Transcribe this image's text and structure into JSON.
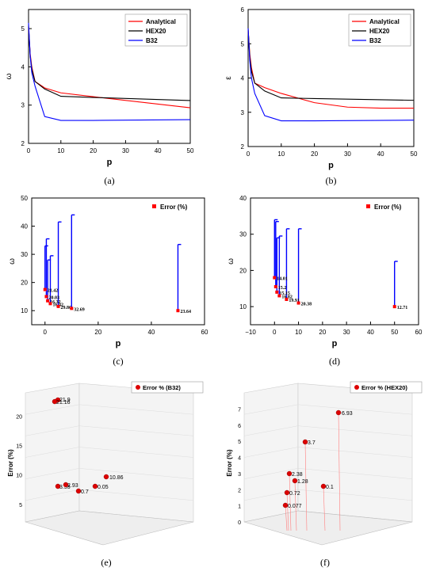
{
  "chart_data": [
    {
      "id": "a",
      "type": "line",
      "caption": "(a)",
      "xlabel": "p",
      "ylabel": "ω",
      "xlim": [
        0,
        50
      ],
      "ylim": [
        2,
        5.5
      ],
      "xticks": [
        "0",
        "10",
        "20",
        "30",
        "40",
        "50"
      ],
      "yticks": [
        "2",
        "3",
        "4",
        "5"
      ],
      "legend": "top-right",
      "series": [
        {
          "name": "Analytical",
          "color": "#ff0000",
          "x": [
            0,
            0.5,
            1,
            2,
            5,
            10,
            20,
            50
          ],
          "y": [
            5.05,
            4.35,
            4.0,
            3.62,
            3.45,
            3.32,
            3.22,
            2.93
          ]
        },
        {
          "name": "HEX20",
          "color": "#000000",
          "x": [
            0,
            0.5,
            1,
            2,
            5,
            10,
            20,
            50
          ],
          "y": [
            5.05,
            4.3,
            3.95,
            3.62,
            3.42,
            3.23,
            3.2,
            3.12
          ]
        },
        {
          "name": "B32",
          "color": "#0000ff",
          "x": [
            0,
            0.5,
            1,
            2,
            5,
            10,
            20,
            50
          ],
          "y": [
            5.15,
            4.3,
            3.85,
            3.5,
            2.7,
            2.6,
            2.6,
            2.62
          ]
        }
      ]
    },
    {
      "id": "b",
      "type": "line",
      "caption": "(b)",
      "xlabel": "p",
      "ylabel": "ε",
      "xlim": [
        0,
        50
      ],
      "ylim": [
        2,
        6
      ],
      "xticks": [
        "0",
        "10",
        "20",
        "30",
        "40",
        "50"
      ],
      "yticks": [
        "2",
        "3",
        "4",
        "5",
        "6"
      ],
      "legend": "top-right",
      "series": [
        {
          "name": "Analytical",
          "color": "#ff0000",
          "x": [
            0,
            0.5,
            1,
            2,
            5,
            10,
            20,
            30,
            40,
            50
          ],
          "y": [
            5.4,
            4.7,
            4.3,
            3.85,
            3.72,
            3.55,
            3.28,
            3.15,
            3.12,
            3.12
          ]
        },
        {
          "name": "HEX20",
          "color": "#000000",
          "x": [
            0,
            0.5,
            1,
            2,
            5,
            10,
            20,
            50
          ],
          "y": [
            5.45,
            4.6,
            4.2,
            3.85,
            3.62,
            3.42,
            3.4,
            3.35
          ]
        },
        {
          "name": "B32",
          "color": "#0000ff",
          "x": [
            0,
            0.5,
            1,
            2,
            5,
            10,
            20,
            50
          ],
          "y": [
            5.45,
            4.5,
            4.0,
            3.55,
            2.9,
            2.75,
            2.75,
            2.77
          ]
        }
      ]
    },
    {
      "id": "c",
      "type": "scatter",
      "caption": "(c)",
      "xlabel": "p",
      "ylabel": "ω",
      "xlim": [
        -5,
        60
      ],
      "ylim": [
        5,
        50
      ],
      "xticks": [
        "0",
        "20",
        "40",
        "60"
      ],
      "yticks": [
        "10",
        "20",
        "30",
        "40",
        "50"
      ],
      "legend": "top-right",
      "series": [
        {
          "name": "Error (%)",
          "color": "#ff0000",
          "x": [
            0,
            0.5,
            1,
            2,
            5,
            10,
            50
          ],
          "y": [
            17.5,
            15.0,
            13.5,
            12.5,
            11.5,
            10.8,
            10.0
          ],
          "labels": [
            "21.42",
            "20.03",
            "16.32",
            "16.42",
            "29.86",
            "32.69",
            "23.64"
          ],
          "bar_top": [
            33,
            35.5,
            28,
            29.5,
            41.5,
            44,
            33.5
          ]
        }
      ]
    },
    {
      "id": "d",
      "type": "scatter",
      "caption": "(d)",
      "xlabel": "p",
      "ylabel": "ω",
      "xlim": [
        -10,
        60
      ],
      "ylim": [
        5,
        40
      ],
      "xticks": [
        "−10",
        "0",
        "10",
        "20",
        "30",
        "40",
        "50",
        "60"
      ],
      "yticks": [
        "10",
        "20",
        "30",
        "40"
      ],
      "legend": "top-right",
      "series": [
        {
          "name": "Error (%)",
          "color": "#ff0000",
          "x": [
            0,
            0.5,
            1,
            2,
            5,
            10,
            50
          ],
          "y": [
            18,
            15.5,
            14,
            13,
            12,
            11,
            10
          ],
          "labels": [
            "14.01",
            "15.2",
            "15.15",
            "16.82",
            "19.91",
            "20.38",
            "12.71"
          ],
          "bar_top": [
            34,
            33.5,
            29,
            29.5,
            31.5,
            31.5,
            22.5
          ]
        }
      ]
    },
    {
      "id": "e",
      "type": "scatter",
      "caption": "(e)",
      "zlabel": "Error (%)",
      "zticks": [
        "5",
        "10",
        "15",
        "20"
      ],
      "legend": "top-right",
      "series": [
        {
          "name": "Error % (B32)",
          "color": "#dd0000",
          "labels": [
            "21.9",
            "21.16",
            "10.86",
            "3.53",
            "2.93",
            "0.7",
            "0.05"
          ]
        }
      ]
    },
    {
      "id": "f",
      "type": "scatter",
      "caption": "(f)",
      "zlabel": "Error (%)",
      "zticks": [
        "0",
        "1",
        "2",
        "3",
        "4",
        "5",
        "6",
        "7"
      ],
      "legend": "top-right",
      "series": [
        {
          "name": "Error % (HEX20)",
          "color": "#dd0000",
          "labels": [
            "6.93",
            "3.7",
            "2.38",
            "1.28",
            "0.72",
            "0.077",
            "0.1"
          ]
        }
      ]
    }
  ]
}
